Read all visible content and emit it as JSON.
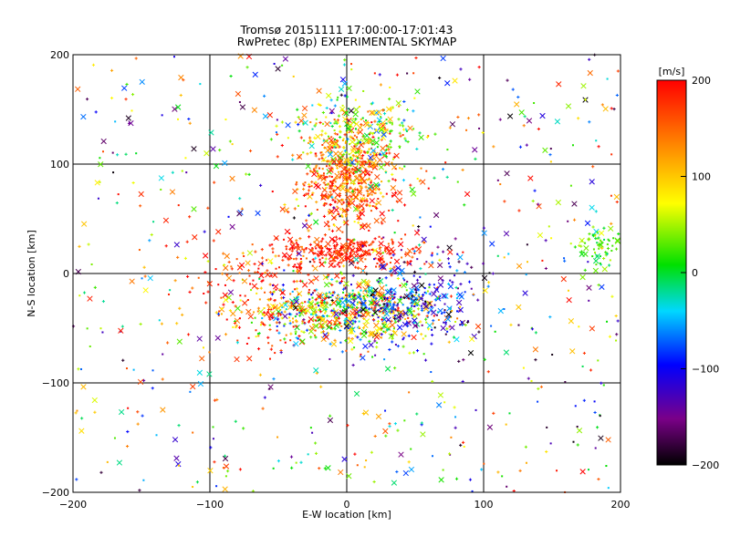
{
  "chart_data": {
    "type": "scatter",
    "title": "Tromsø 20151111 17:00:00-17:01:43",
    "subtitle": "RwPretec (8p) EXPERIMENTAL SKYMAP",
    "xlabel": "E-W location [km]",
    "ylabel": "N-S location [km]",
    "xlim": [
      -200,
      200
    ],
    "ylim": [
      -200,
      200
    ],
    "xticks": [
      "−200",
      "−100",
      "0",
      "100",
      "200"
    ],
    "yticks": [
      "−200",
      "−100",
      "0",
      "100",
      "200"
    ],
    "grid": true,
    "marker_types": [
      "x",
      "+",
      "dot"
    ],
    "colorbar": {
      "label": "[m/s]",
      "range": [
        -200,
        200
      ],
      "ticks": [
        "200",
        "100",
        "0",
        "−100",
        "−200"
      ],
      "colormap": "rainbow (black → purple → blue → cyan → green → yellow → orange → red)"
    },
    "clusters": [
      {
        "x": 0,
        "y": 85,
        "velocity": 150,
        "note": "dense red cluster north of origin"
      },
      {
        "x": 0,
        "y": 20,
        "velocity": 180,
        "note": "red band near origin"
      },
      {
        "x": 5,
        "y": -35,
        "velocity": 30,
        "note": "mixed dense cluster south of origin"
      },
      {
        "x": 10,
        "y": 130,
        "velocity": 30,
        "note": "green/cyan cluster far north"
      },
      {
        "x": 55,
        "y": -20,
        "velocity": -100,
        "note": "blue/purple points east of origin"
      },
      {
        "x": 185,
        "y": 25,
        "velocity": 20,
        "note": "green/cyan group at east edge"
      },
      {
        "x": -60,
        "y": -20,
        "velocity": 160,
        "note": "red points west of origin"
      }
    ]
  }
}
